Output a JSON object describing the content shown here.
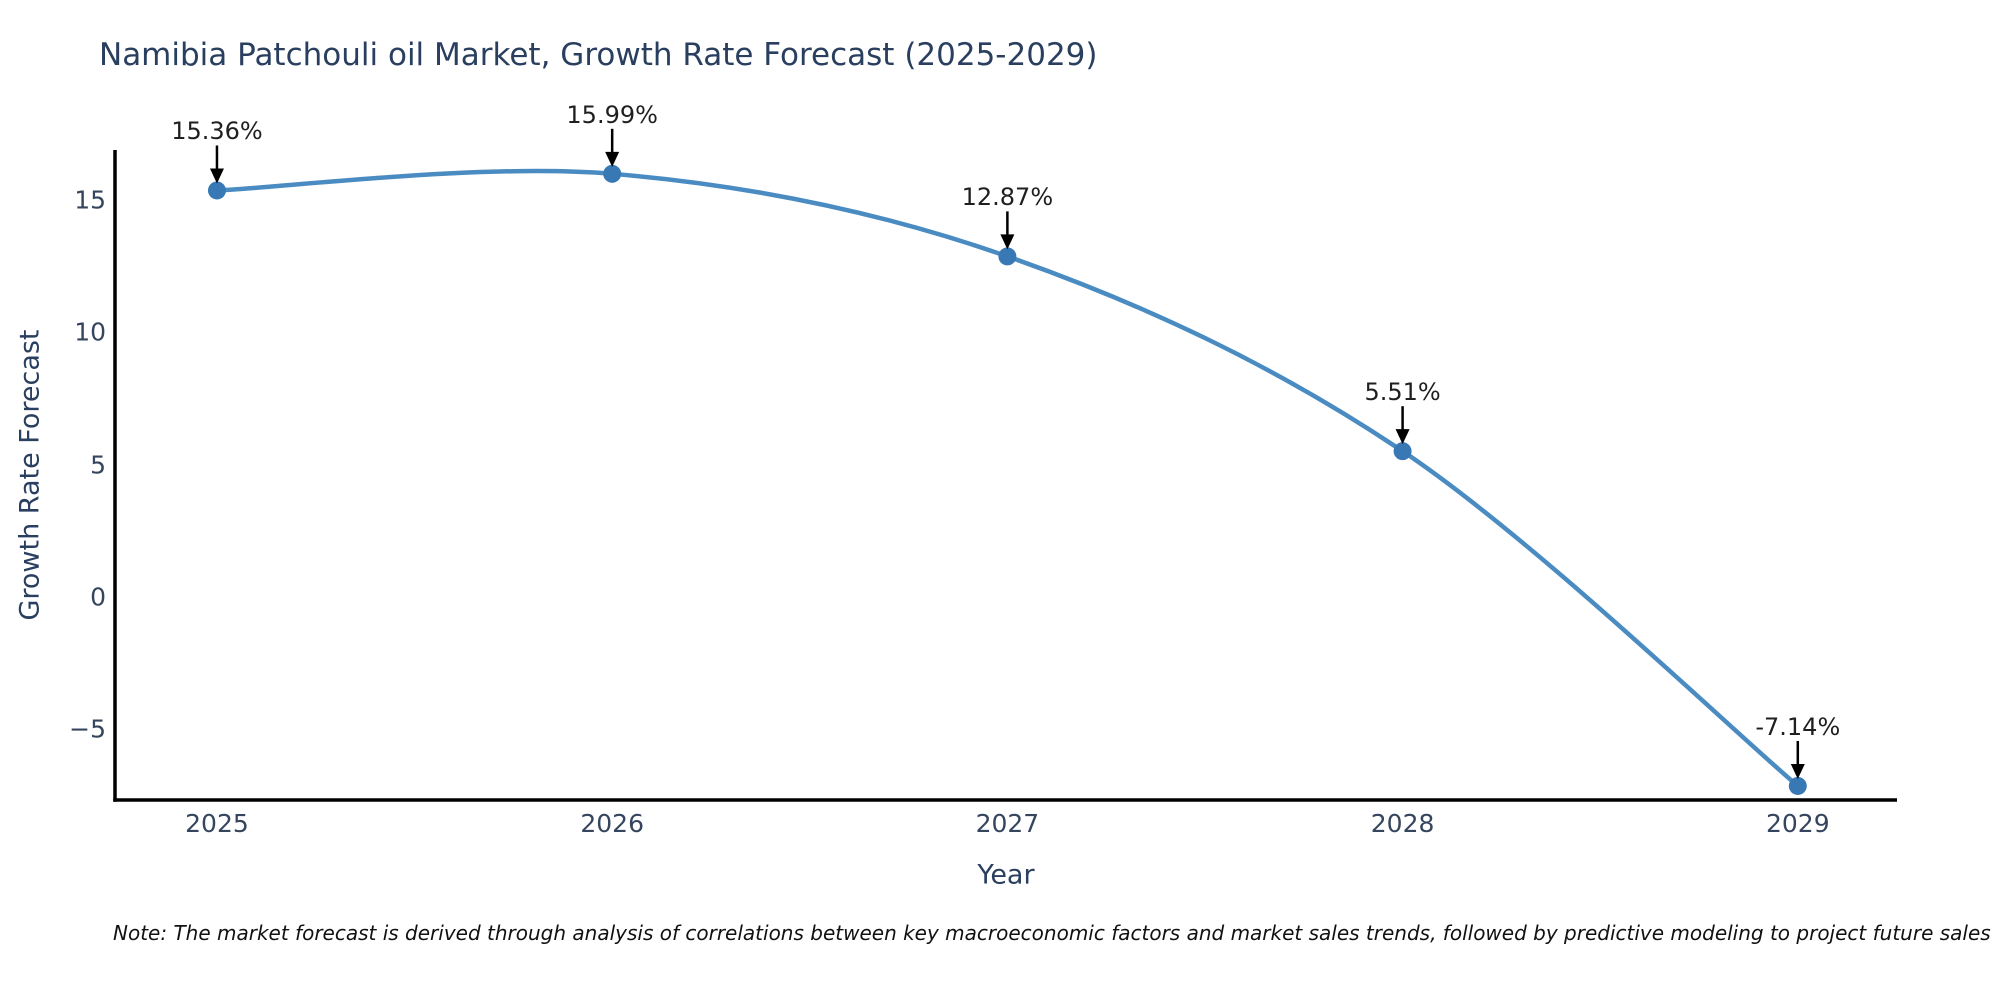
{
  "chart_data": {
    "type": "line",
    "line_shape": "spline",
    "title": "Namibia Patchouli oil Market, Growth Rate Forecast (2025-2029)",
    "xlabel": "Year",
    "ylabel": "Growth Rate Forecast",
    "x": [
      2025,
      2026,
      2027,
      2028,
      2029
    ],
    "series": [
      {
        "name": "Growth Rate Forecast",
        "values": [
          15.36,
          15.99,
          12.87,
          5.51,
          -7.14
        ]
      }
    ],
    "point_labels": [
      "15.36%",
      "15.99%",
      "12.87%",
      "5.51%",
      "-7.14%"
    ],
    "xtick_labels": [
      "2025",
      "2026",
      "2027",
      "2028",
      "2029"
    ],
    "ytick_values": [
      15,
      10,
      5,
      0,
      -5
    ],
    "ytick_labels": [
      "15",
      "10",
      "5",
      "0",
      "−5"
    ],
    "xlim": [
      2024.742,
      2029.251
    ],
    "ylim": [
      -7.67,
      16.89
    ],
    "grid": false,
    "legend": null,
    "colors": {
      "line": "#4a8cc2",
      "marker": "#3878b4",
      "arrow": "#000000",
      "axis": "#000000",
      "title": "#2a3f5f",
      "tick": "#36455e",
      "annotation": "#1f1f1f",
      "note": "#111111"
    }
  },
  "note": "Note: The market forecast is derived through analysis of correlations between key macroeconomic factors and market sales trends, followed by predictive modeling to project future sales"
}
